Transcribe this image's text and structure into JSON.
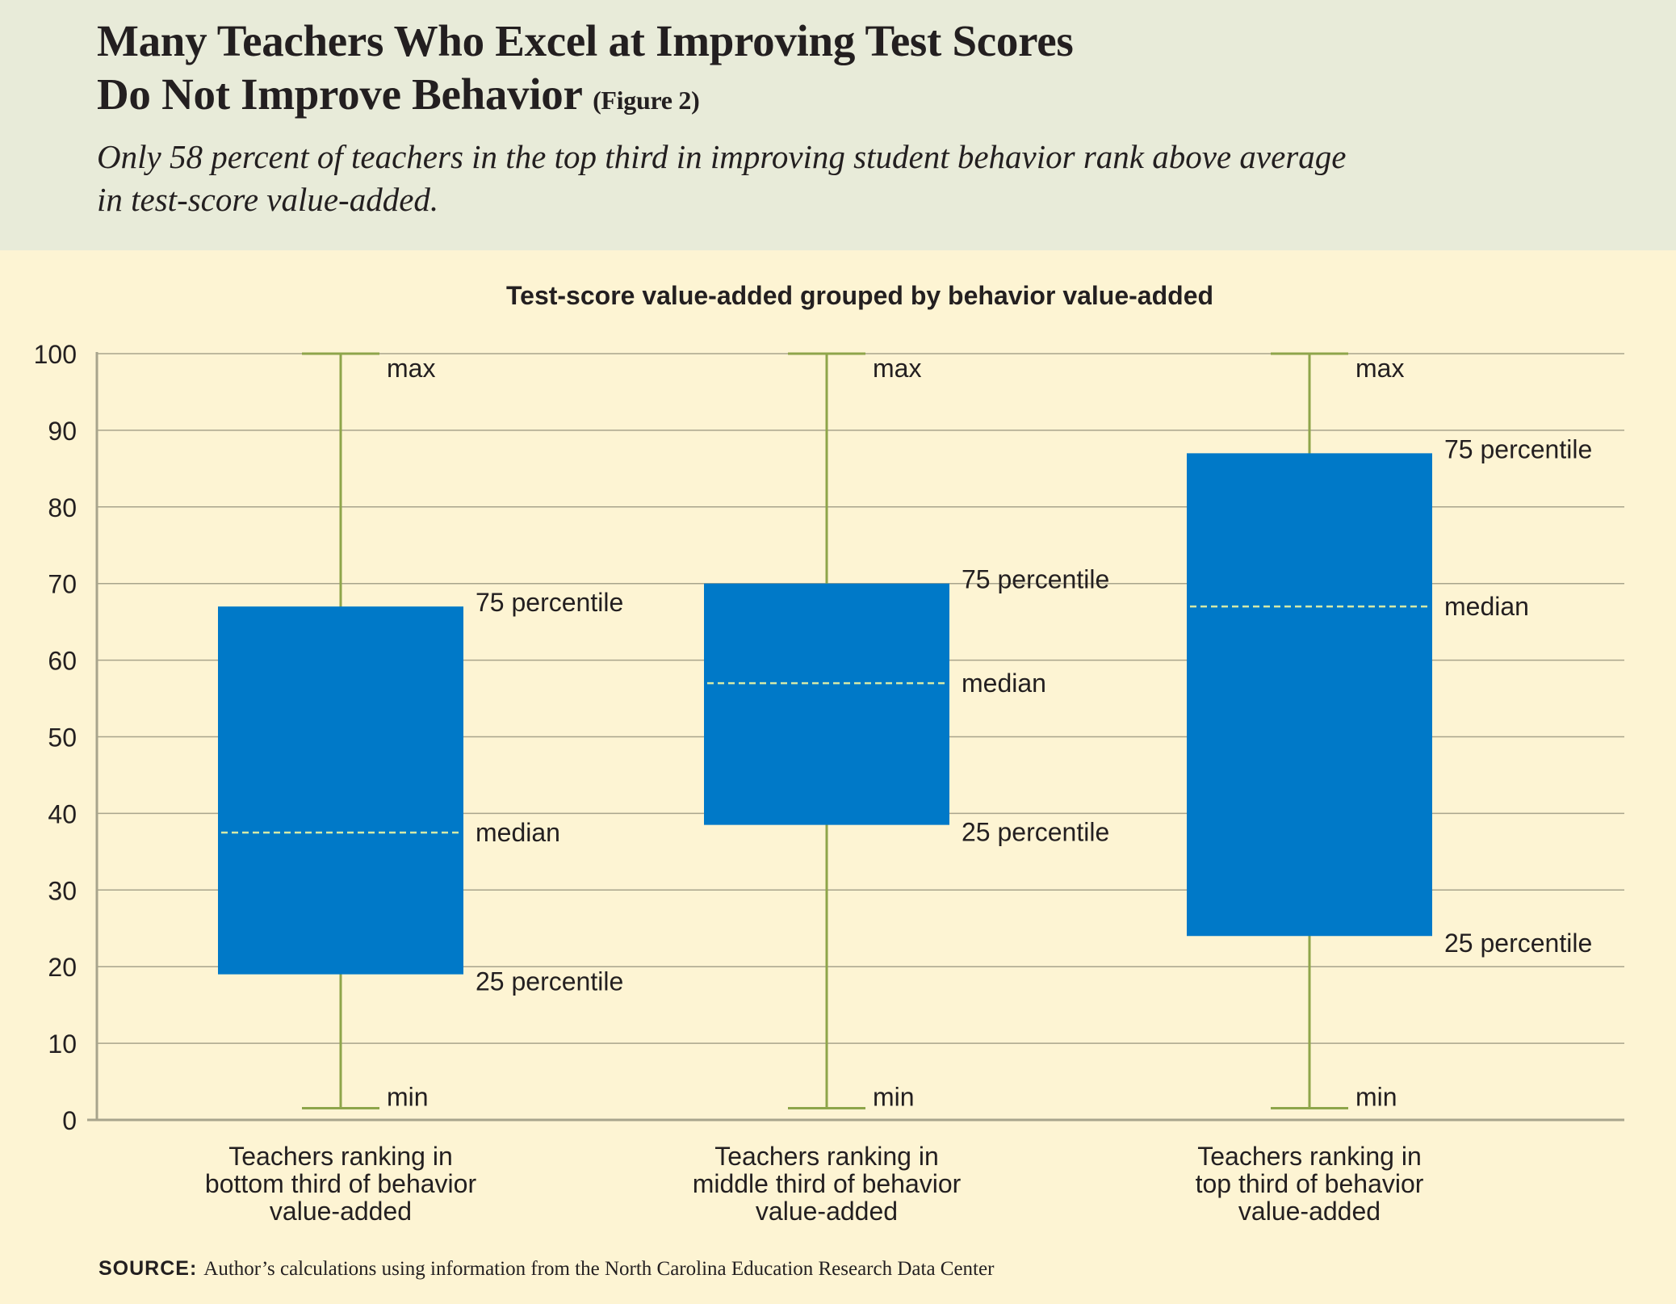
{
  "header": {
    "title": "Many Teachers Who Excel at Improving Test Scores\nDo Not Improve Behavior",
    "figure_label": "(Figure 2)",
    "subtitle": "Only 58 percent of teachers in the top third in improving student behavior rank above average\nin test-score value-added."
  },
  "colors": {
    "header_bg": "#e8ebd9",
    "chart_bg": "#fdf4d3",
    "box_fill": "#0079c8",
    "whisker": "#8ea54a",
    "median_line": "#d4e9a8",
    "grid": "#a8a48c",
    "axis": "#a8a48c",
    "text": "#231f20"
  },
  "chart_data": {
    "type": "boxplot",
    "title": "Test-score value-added grouped by behavior value-added",
    "ylim": [
      0,
      100
    ],
    "yticks": [
      0,
      10,
      20,
      30,
      40,
      50,
      60,
      70,
      80,
      90,
      100
    ],
    "grid": true,
    "categories": [
      "Teachers ranking in\nbottom third of behavior\nvalue-added",
      "Teachers ranking in\nmiddle third of behavior\nvalue-added",
      "Teachers ranking in\ntop third of behavior\nvalue-added"
    ],
    "boxes": [
      {
        "min": 1,
        "q1": 19,
        "median": 37.5,
        "q3": 67,
        "max": 100
      },
      {
        "min": 1,
        "q1": 38.5,
        "median": 57,
        "q3": 70,
        "max": 100
      },
      {
        "min": 1,
        "q1": 24,
        "median": 67,
        "q3": 87,
        "max": 100
      }
    ],
    "annotation_labels": {
      "max": "max",
      "q3": "75 percentile",
      "median": "median",
      "q1": "25 percentile",
      "min": "min"
    }
  },
  "source": {
    "label": "SOURCE:",
    "text": "Author’s calculations using information from the North Carolina Education Research Data Center"
  }
}
